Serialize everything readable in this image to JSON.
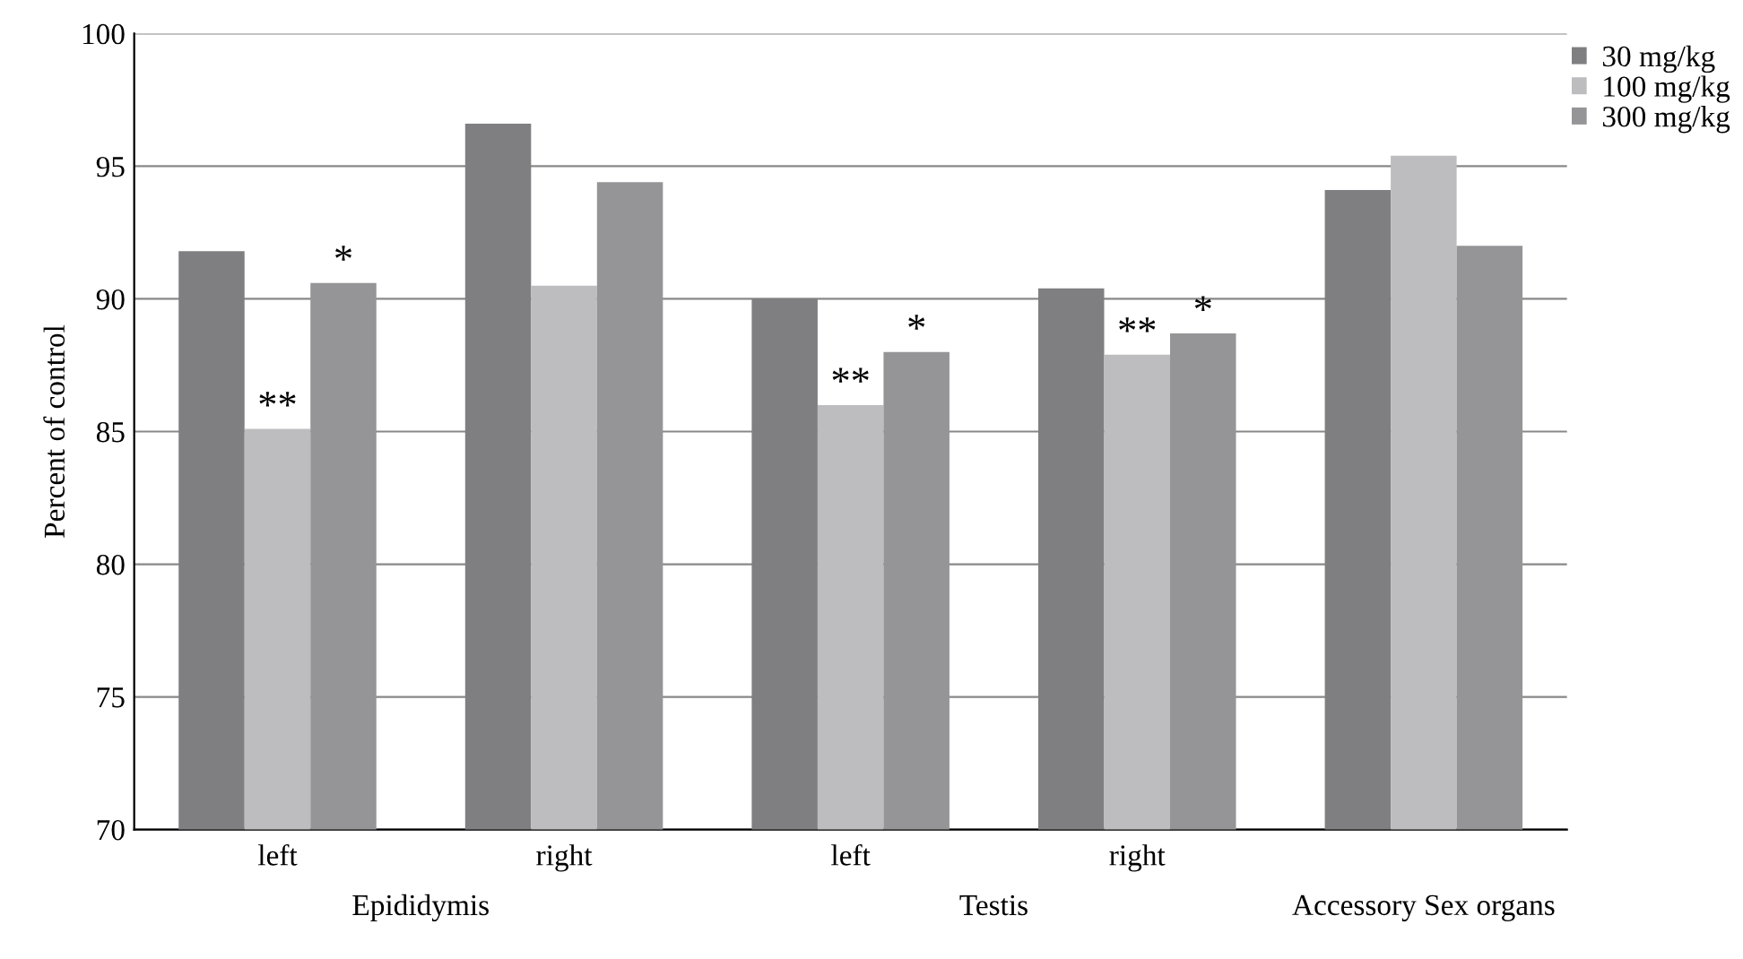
{
  "chart_data": {
    "type": "bar",
    "ylabel": "Percent of control",
    "categories": [
      "left",
      "right",
      "left",
      "right",
      null
    ],
    "series": [
      {
        "name": "30 mg/kg",
        "color": "#7f7f82",
        "values": [
          91.8,
          96.6,
          90.0,
          90.4,
          94.1
        ]
      },
      {
        "name": "100 mg/kg",
        "color": "#bdbdbf",
        "values": [
          85.1,
          90.5,
          86.0,
          87.9,
          95.4
        ],
        "value_labels": [
          "**",
          null,
          "**",
          "**",
          null
        ]
      },
      {
        "name": "300 mg/kg",
        "color": "#959598",
        "values": [
          90.6,
          94.4,
          88.0,
          88.7,
          92.0
        ],
        "value_labels": [
          "*",
          null,
          "*",
          "*",
          null
        ]
      }
    ],
    "annotations": [
      "Epididymis",
      "Testis",
      "Accessory Sex organs"
    ],
    "ylim": [
      70,
      100
    ],
    "yticks": [
      70,
      75,
      80,
      85,
      90,
      95,
      100
    ],
    "grid": "y",
    "legend": "top right"
  }
}
